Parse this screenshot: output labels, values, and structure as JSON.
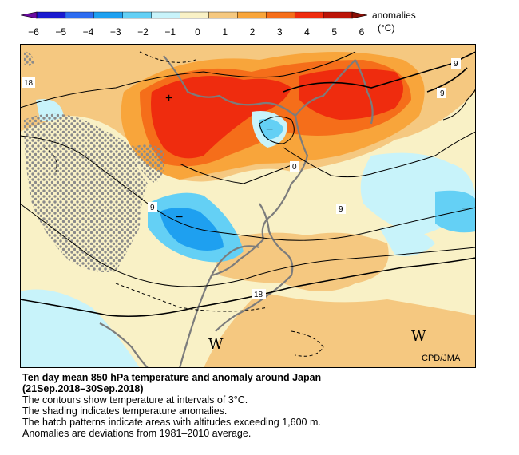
{
  "legend": {
    "ticks": [
      "−6",
      "−5",
      "−4",
      "−3",
      "−2",
      "−1",
      "0",
      "1",
      "2",
      "3",
      "4",
      "5",
      "6"
    ],
    "colors": [
      "#1a1ad0",
      "#2d6cf0",
      "#1ea0f0",
      "#64d0f5",
      "#c8f3fa",
      "#f9f1c6",
      "#f5c880",
      "#f8a53b",
      "#f56e1a",
      "#ef2c0e",
      "#bb1408"
    ],
    "units_line1": "anomalies",
    "units_line2": "(°C)"
  },
  "map": {
    "contour_labels": [
      "18",
      "9",
      "9",
      "0",
      "9",
      "9",
      "18"
    ],
    "anomaly_markers": [
      "+",
      "−",
      "−",
      "−"
    ],
    "w_markers": [
      "W",
      "W"
    ],
    "credit": "CPD/JMA"
  },
  "caption": {
    "title_line1": "Ten day mean 850 hPa temperature and anomaly around Japan",
    "title_line2": "(21Sep.2018–30Sep.2018)",
    "line1": "The contours show temperature at intervals of 3°C.",
    "line2": "The shading indicates temperature anomalies.",
    "line3": "The hatch patterns indicate areas with altitudes exceeding 1,600 m.",
    "line4": "Anomalies are deviations from 1981–2010 average."
  }
}
